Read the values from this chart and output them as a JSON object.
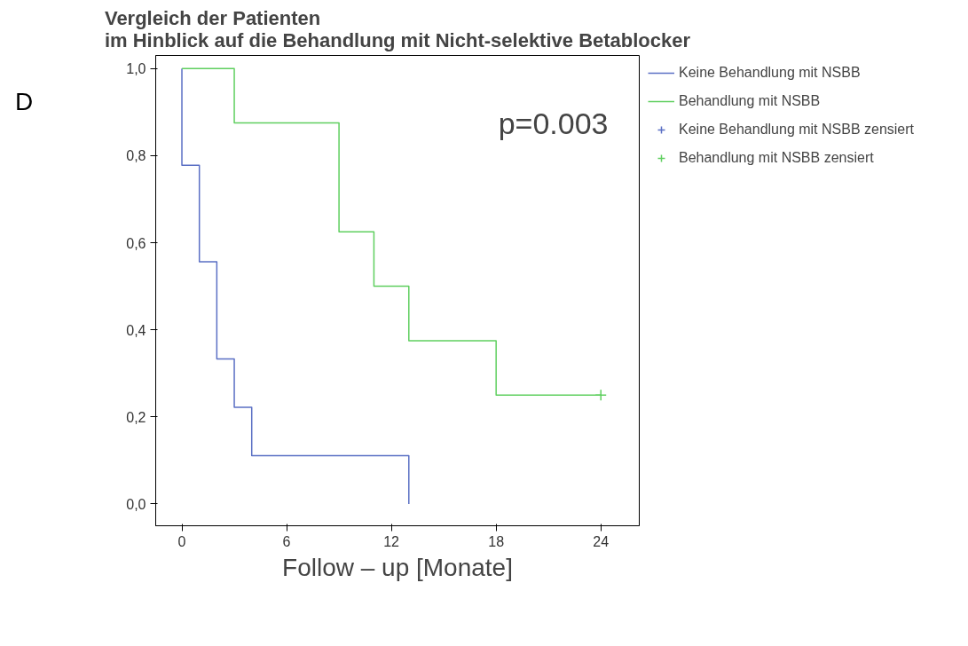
{
  "chart_data": {
    "type": "step",
    "title": "Vergleich der Patienten\nim Hinblick auf die Behandlung mit Nicht-selektive Betablocker",
    "xlabel": "Follow – up [Monate]",
    "annotations": [
      "D",
      "p=0.003"
    ],
    "xlim": [
      -1.5,
      26.2
    ],
    "ylim": [
      -0.05,
      1.03
    ],
    "xticks": [
      0,
      6,
      12,
      18,
      24
    ],
    "yticks": [
      {
        "value": 0,
        "label": "0,0"
      },
      {
        "value": 0.2,
        "label": "0,2"
      },
      {
        "value": 0.4,
        "label": "0,4"
      },
      {
        "value": 0.6,
        "label": "0,6"
      },
      {
        "value": 0.8,
        "label": "0,8"
      },
      {
        "value": 1,
        "label": "1,0"
      }
    ],
    "grid": false,
    "legend": "right",
    "series": [
      {
        "name": "Keine Behandlung mit NSBB",
        "color": "#5a6fc4",
        "x": [
          0,
          0,
          1,
          2,
          3,
          4,
          13
        ],
        "values": [
          1.0,
          0.778,
          0.556,
          0.333,
          0.222,
          0.111,
          0.0
        ]
      },
      {
        "name": "Behandlung mit NSBB",
        "color": "#5fcf5f",
        "x": [
          0,
          3,
          9,
          11,
          13,
          18,
          24
        ],
        "values": [
          1.0,
          0.875,
          0.625,
          0.5,
          0.375,
          0.25,
          0.25
        ]
      },
      {
        "name": "Keine Behandlung mit NSBB zensiert",
        "type": "scatter",
        "marker": "cross",
        "color": "#5a6fc4"
      },
      {
        "name": "Behandlung mit NSBB zensiert",
        "type": "scatter",
        "marker": "cross",
        "color": "#5fcf5f",
        "x": [
          24
        ],
        "values": [
          0.25
        ]
      }
    ]
  }
}
